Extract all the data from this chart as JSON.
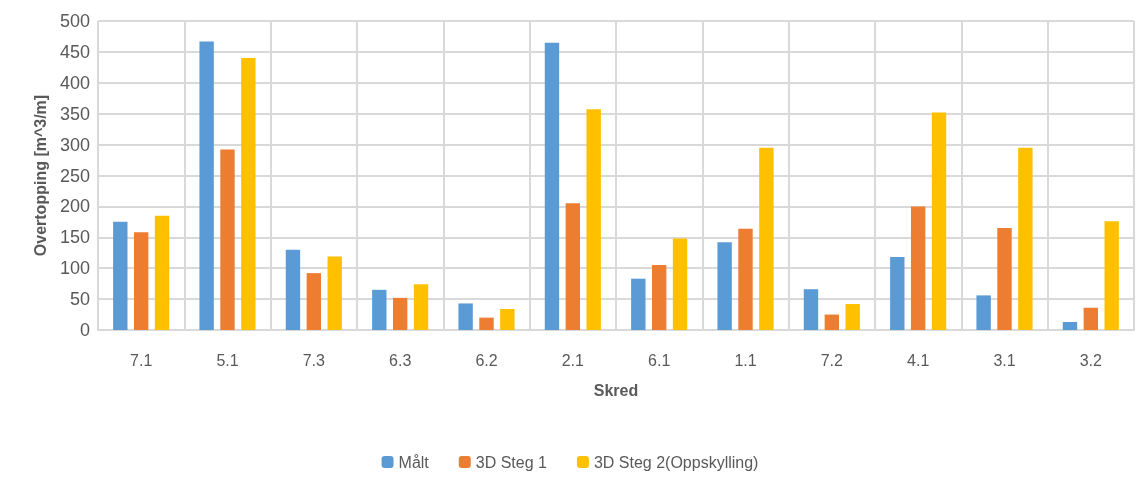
{
  "chart_data": {
    "type": "bar",
    "xlabel": "Skred",
    "ylabel": "Overtopping [m^3/m]",
    "categories": [
      "7.1",
      "5.1",
      "7.3",
      "6.3",
      "6.2",
      "2.1",
      "6.1",
      "1.1",
      "7.2",
      "4.1",
      "3.1",
      "3.2"
    ],
    "series": [
      {
        "name": "Målt",
        "color": "#5b9bd5",
        "values": [
          175,
          467,
          130,
          65,
          43,
          465,
          83,
          142,
          66,
          118,
          56,
          13
        ]
      },
      {
        "name": "3D Steg 1",
        "color": "#ed7d31",
        "values": [
          158,
          292,
          92,
          52,
          20,
          205,
          105,
          164,
          25,
          200,
          165,
          36
        ]
      },
      {
        "name": "3D Steg 2(Oppskylling)",
        "color": "#ffc000",
        "values": [
          185,
          440,
          119,
          74,
          34,
          357,
          148,
          295,
          42,
          352,
          295,
          176
        ]
      }
    ],
    "ylim": [
      0,
      500
    ],
    "yticks": [
      0,
      50,
      100,
      150,
      200,
      250,
      300,
      350,
      400,
      450,
      500
    ],
    "grid": true,
    "legend": "bottom"
  }
}
